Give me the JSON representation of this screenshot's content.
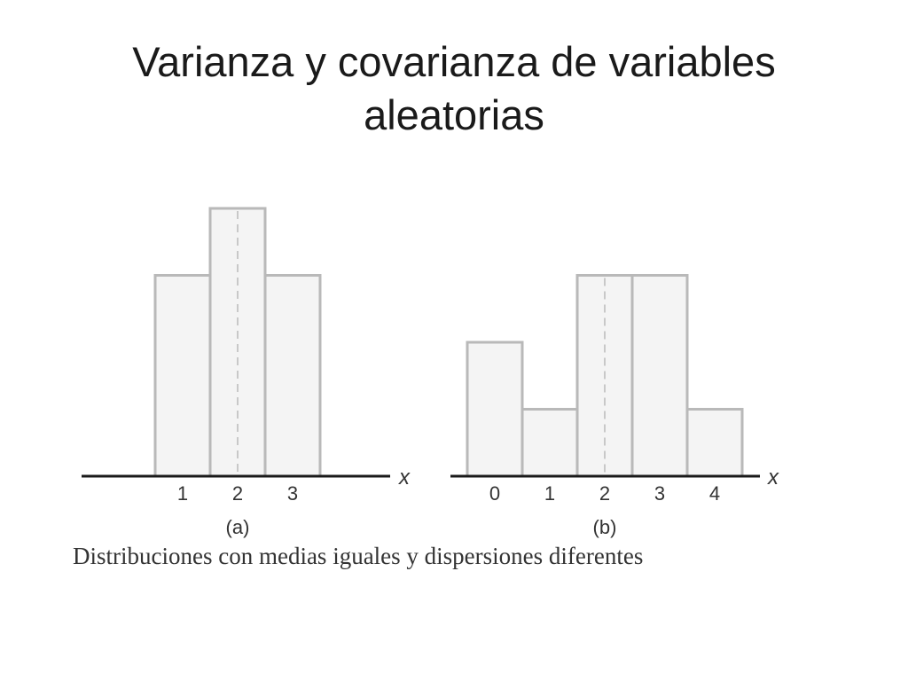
{
  "slide": {
    "title_line1": "Varianza y covarianza de variables",
    "title_line2": "aleatorias",
    "caption": "Distribuciones con medias iguales y dispersiones diferentes"
  },
  "colors": {
    "bar_fill": "#f4f4f4",
    "bar_stroke": "#b9b9b9",
    "axis": "#1a1a1a",
    "text": "#333333"
  },
  "chart_data": [
    {
      "type": "bar",
      "panel_label": "(a)",
      "xlabel": "x",
      "categories": [
        "1",
        "2",
        "3"
      ],
      "values": [
        3,
        4,
        3
      ],
      "mean": 2,
      "mean_line": "dashed"
    },
    {
      "type": "bar",
      "panel_label": "(b)",
      "xlabel": "x",
      "categories": [
        "0",
        "1",
        "2",
        "3",
        "4"
      ],
      "values": [
        2,
        1,
        3,
        3,
        1
      ],
      "mean": 2,
      "mean_line": "dashed"
    }
  ]
}
